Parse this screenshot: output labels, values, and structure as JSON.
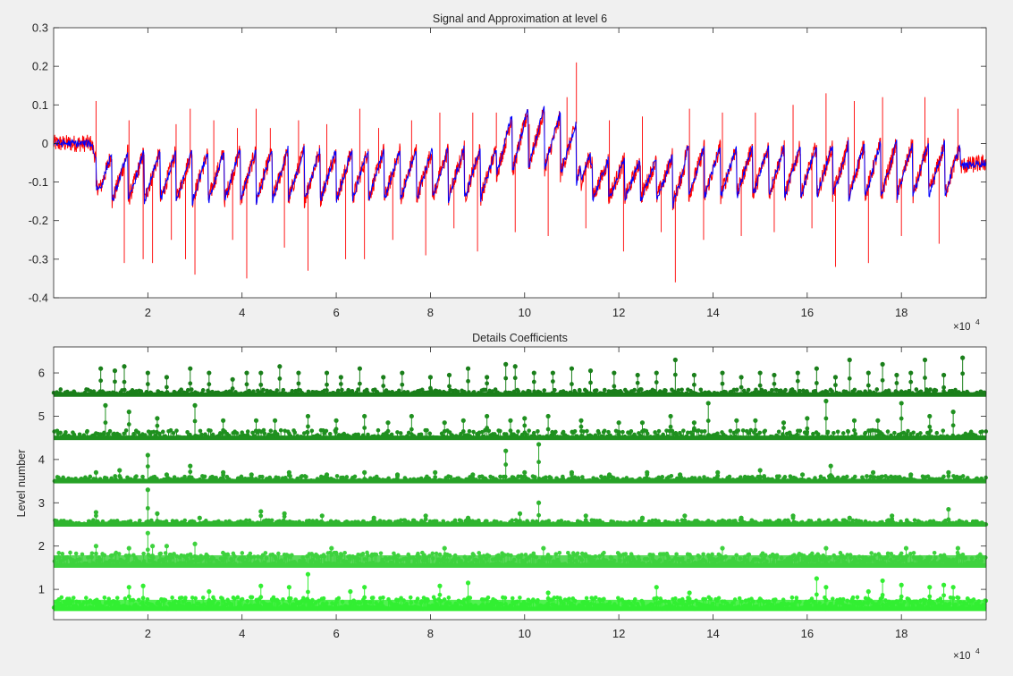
{
  "window": {
    "background": "#f0f0f0"
  },
  "chart_data": [
    {
      "type": "line",
      "title": "Signal and Approximation at level 6",
      "xlabel": "",
      "ylabel": "",
      "x_exponent_label": "×10",
      "x_exponent_power": "4",
      "xlim": [
        0,
        19.8
      ],
      "ylim": [
        -0.4,
        0.3
      ],
      "x_ticks": [
        2,
        4,
        6,
        8,
        10,
        12,
        14,
        16,
        18
      ],
      "y_ticks": [
        -0.4,
        -0.3,
        -0.2,
        -0.1,
        0,
        0.1,
        0.2,
        0.3
      ],
      "y_tick_labels": [
        "-0.4",
        "-0.3",
        "-0.2",
        "-0.1",
        "0",
        "0.1",
        "0.2",
        "0.3"
      ],
      "grid": false,
      "series": [
        {
          "color": "#ff0000",
          "role": "signal"
        },
        {
          "color": "#0000ff",
          "role": "approximation"
        }
      ],
      "baseline_segments": [
        [
          0,
          0.0
        ],
        [
          0.8,
          0.0
        ],
        [
          1.0,
          -0.08
        ],
        [
          19.2,
          -0.06
        ],
        [
          19.8,
          -0.05
        ]
      ],
      "spikes": [
        [
          0.9,
          0.11
        ],
        [
          1.5,
          -0.31
        ],
        [
          1.6,
          0.06
        ],
        [
          1.9,
          -0.3
        ],
        [
          2.1,
          -0.31
        ],
        [
          2.5,
          -0.25
        ],
        [
          2.6,
          0.05
        ],
        [
          2.8,
          -0.3
        ],
        [
          2.9,
          0.09
        ],
        [
          3.0,
          -0.34
        ],
        [
          3.4,
          0.06
        ],
        [
          3.8,
          -0.25
        ],
        [
          3.9,
          0.04
        ],
        [
          4.1,
          -0.35
        ],
        [
          4.3,
          0.09
        ],
        [
          4.6,
          0.04
        ],
        [
          4.9,
          -0.27
        ],
        [
          5.2,
          0.06
        ],
        [
          5.4,
          -0.33
        ],
        [
          5.8,
          0.05
        ],
        [
          6.2,
          -0.3
        ],
        [
          6.5,
          0.09
        ],
        [
          6.6,
          -0.3
        ],
        [
          6.9,
          0.04
        ],
        [
          7.2,
          -0.25
        ],
        [
          7.6,
          0.06
        ],
        [
          7.9,
          -0.29
        ],
        [
          8.2,
          0.08
        ],
        [
          8.5,
          -0.22
        ],
        [
          8.9,
          0.08
        ],
        [
          9.0,
          -0.28
        ],
        [
          9.4,
          0.08
        ],
        [
          9.8,
          -0.23
        ],
        [
          10.1,
          0.05
        ],
        [
          10.5,
          -0.24
        ],
        [
          10.9,
          0.12
        ],
        [
          11.1,
          0.21
        ],
        [
          11.3,
          -0.22
        ],
        [
          11.8,
          0.06
        ],
        [
          12.1,
          -0.28
        ],
        [
          12.5,
          0.07
        ],
        [
          12.9,
          -0.23
        ],
        [
          13.2,
          -0.36
        ],
        [
          13.5,
          0.09
        ],
        [
          13.8,
          -0.25
        ],
        [
          14.2,
          0.08
        ],
        [
          14.6,
          -0.24
        ],
        [
          14.9,
          0.08
        ],
        [
          15.3,
          -0.23
        ],
        [
          15.7,
          0.1
        ],
        [
          16.1,
          -0.22
        ],
        [
          16.4,
          0.13
        ],
        [
          16.6,
          -0.32
        ],
        [
          17.0,
          0.11
        ],
        [
          17.3,
          -0.31
        ],
        [
          17.6,
          0.12
        ],
        [
          18.0,
          -0.24
        ],
        [
          18.5,
          0.12
        ],
        [
          18.8,
          -0.26
        ],
        [
          19.2,
          0.09
        ]
      ]
    },
    {
      "type": "scatter",
      "title": "Details Coefficients",
      "xlabel": "",
      "ylabel": "Level number",
      "x_exponent_label": "×10",
      "x_exponent_power": "4",
      "xlim": [
        0,
        19.8
      ],
      "ylim": [
        0.3,
        6.6
      ],
      "x_ticks": [
        2,
        4,
        6,
        8,
        10,
        12,
        14,
        16,
        18
      ],
      "y_ticks": [
        1,
        2,
        3,
        4,
        5,
        6
      ],
      "grid": false,
      "levels": [
        {
          "level": 6,
          "baseline": 5.5,
          "band_top": 5.62,
          "color": "#1a7f1a",
          "stems": [
            [
              1.0,
              6.1
            ],
            [
              1.3,
              6.05
            ],
            [
              1.5,
              6.15
            ],
            [
              2.0,
              6.0
            ],
            [
              2.4,
              5.9
            ],
            [
              2.9,
              6.1
            ],
            [
              3.3,
              6.0
            ],
            [
              3.8,
              5.85
            ],
            [
              4.1,
              6.0
            ],
            [
              4.4,
              6.0
            ],
            [
              4.8,
              6.15
            ],
            [
              5.2,
              6.0
            ],
            [
              5.8,
              6.0
            ],
            [
              6.1,
              5.9
            ],
            [
              6.5,
              6.1
            ],
            [
              7.0,
              5.9
            ],
            [
              7.4,
              6.0
            ],
            [
              8.0,
              5.9
            ],
            [
              8.4,
              5.95
            ],
            [
              8.8,
              6.1
            ],
            [
              9.2,
              5.9
            ],
            [
              9.6,
              6.2
            ],
            [
              9.8,
              6.15
            ],
            [
              10.2,
              6.0
            ],
            [
              10.6,
              6.0
            ],
            [
              11.0,
              6.1
            ],
            [
              11.4,
              6.05
            ],
            [
              11.9,
              6.0
            ],
            [
              12.4,
              5.95
            ],
            [
              12.8,
              6.0
            ],
            [
              13.2,
              6.3
            ],
            [
              13.6,
              5.95
            ],
            [
              14.2,
              6.0
            ],
            [
              14.6,
              5.9
            ],
            [
              15.0,
              6.0
            ],
            [
              15.3,
              5.95
            ],
            [
              15.8,
              6.0
            ],
            [
              16.2,
              6.1
            ],
            [
              16.6,
              5.9
            ],
            [
              16.9,
              6.3
            ],
            [
              17.3,
              6.0
            ],
            [
              17.6,
              6.2
            ],
            [
              17.9,
              5.95
            ],
            [
              18.2,
              6.0
            ],
            [
              18.5,
              6.3
            ],
            [
              18.9,
              5.95
            ],
            [
              19.3,
              6.35
            ]
          ]
        },
        {
          "level": 5,
          "baseline": 4.5,
          "band_top": 4.68,
          "color": "#1f901f",
          "stems": [
            [
              1.1,
              5.25
            ],
            [
              1.6,
              5.1
            ],
            [
              2.2,
              4.95
            ],
            [
              3.0,
              5.25
            ],
            [
              3.6,
              4.9
            ],
            [
              4.3,
              4.9
            ],
            [
              4.7,
              4.9
            ],
            [
              5.4,
              5.0
            ],
            [
              6.0,
              4.9
            ],
            [
              6.6,
              5.0
            ],
            [
              7.1,
              4.85
            ],
            [
              7.6,
              5.0
            ],
            [
              8.3,
              4.85
            ],
            [
              8.7,
              4.9
            ],
            [
              9.2,
              5.0
            ],
            [
              9.7,
              4.9
            ],
            [
              10.0,
              4.95
            ],
            [
              10.5,
              5.0
            ],
            [
              11.2,
              4.9
            ],
            [
              12.0,
              4.85
            ],
            [
              12.5,
              4.85
            ],
            [
              13.1,
              5.0
            ],
            [
              13.6,
              4.85
            ],
            [
              13.9,
              5.3
            ],
            [
              14.5,
              4.9
            ],
            [
              14.9,
              4.9
            ],
            [
              15.5,
              4.85
            ],
            [
              16.0,
              4.95
            ],
            [
              16.4,
              5.35
            ],
            [
              17.0,
              4.9
            ],
            [
              17.5,
              4.9
            ],
            [
              18.0,
              5.3
            ],
            [
              18.6,
              5.0
            ],
            [
              19.1,
              5.1
            ]
          ]
        },
        {
          "level": 4,
          "baseline": 3.5,
          "band_top": 3.62,
          "color": "#27a227",
          "stems": [
            [
              0.9,
              3.7
            ],
            [
              1.4,
              3.75
            ],
            [
              2.0,
              4.1
            ],
            [
              2.4,
              3.65
            ],
            [
              2.9,
              3.85
            ],
            [
              3.6,
              3.7
            ],
            [
              4.2,
              3.65
            ],
            [
              5.0,
              3.7
            ],
            [
              5.8,
              3.65
            ],
            [
              6.6,
              3.7
            ],
            [
              7.3,
              3.65
            ],
            [
              8.1,
              3.7
            ],
            [
              8.9,
              3.65
            ],
            [
              9.6,
              4.2
            ],
            [
              10.0,
              3.7
            ],
            [
              10.3,
              4.35
            ],
            [
              11.0,
              3.7
            ],
            [
              11.8,
              3.65
            ],
            [
              12.6,
              3.7
            ],
            [
              13.3,
              3.65
            ],
            [
              14.1,
              3.7
            ],
            [
              15.0,
              3.75
            ],
            [
              15.9,
              3.65
            ],
            [
              16.5,
              3.85
            ],
            [
              17.4,
              3.7
            ],
            [
              18.2,
              3.65
            ],
            [
              19.0,
              3.7
            ]
          ]
        },
        {
          "level": 3,
          "baseline": 2.5,
          "band_top": 2.6,
          "color": "#2fb52f",
          "stems": [
            [
              0.9,
              2.78
            ],
            [
              2.0,
              3.3
            ],
            [
              2.2,
              2.75
            ],
            [
              3.1,
              2.65
            ],
            [
              4.4,
              2.8
            ],
            [
              4.9,
              2.75
            ],
            [
              5.7,
              2.7
            ],
            [
              6.8,
              2.65
            ],
            [
              7.9,
              2.7
            ],
            [
              8.8,
              2.65
            ],
            [
              9.9,
              2.75
            ],
            [
              10.3,
              3.0
            ],
            [
              11.3,
              2.7
            ],
            [
              12.5,
              2.65
            ],
            [
              13.4,
              2.7
            ],
            [
              14.6,
              2.65
            ],
            [
              15.7,
              2.7
            ],
            [
              16.9,
              2.65
            ],
            [
              17.8,
              2.7
            ],
            [
              19.0,
              2.85
            ]
          ]
        },
        {
          "level": 2,
          "baseline": 1.55,
          "band_top": 1.85,
          "color": "#3ed23e",
          "stems": [
            [
              0.9,
              2.0
            ],
            [
              1.6,
              1.95
            ],
            [
              2.0,
              2.3
            ],
            [
              2.1,
              2.0
            ],
            [
              2.4,
              2.0
            ],
            [
              3.0,
              2.05
            ],
            [
              5.9,
              1.95
            ],
            [
              8.3,
              1.95
            ],
            [
              10.4,
              1.95
            ],
            [
              14.2,
              1.95
            ],
            [
              16.4,
              1.95
            ],
            [
              18.1,
              1.95
            ],
            [
              19.2,
              1.95
            ]
          ]
        },
        {
          "level": 1,
          "baseline": 0.55,
          "band_top": 0.82,
          "color": "#33ee33",
          "stems": [
            [
              1.6,
              1.05
            ],
            [
              1.9,
              1.08
            ],
            [
              3.3,
              0.95
            ],
            [
              4.4,
              1.08
            ],
            [
              5.0,
              1.05
            ],
            [
              5.4,
              1.35
            ],
            [
              6.3,
              0.95
            ],
            [
              6.6,
              1.05
            ],
            [
              8.2,
              1.08
            ],
            [
              8.8,
              1.15
            ],
            [
              10.5,
              0.92
            ],
            [
              12.8,
              1.05
            ],
            [
              13.5,
              0.92
            ],
            [
              16.2,
              1.25
            ],
            [
              16.4,
              1.05
            ],
            [
              17.3,
              0.95
            ],
            [
              17.6,
              1.2
            ],
            [
              18.0,
              1.1
            ],
            [
              18.6,
              1.05
            ],
            [
              18.9,
              1.1
            ],
            [
              19.1,
              1.05
            ]
          ]
        }
      ]
    }
  ]
}
